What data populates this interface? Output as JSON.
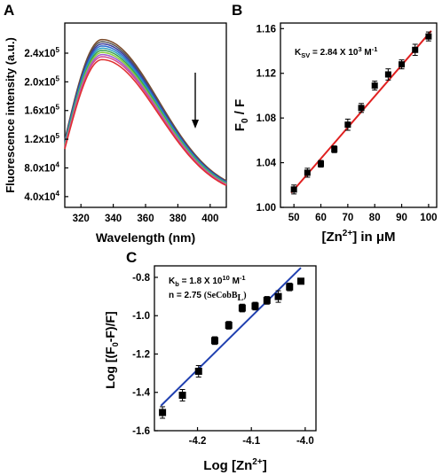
{
  "panels": {
    "a": "A",
    "b": "B",
    "c": "C"
  },
  "chart_data": [
    {
      "type": "line",
      "panel": "A",
      "xlabel": "Wavelength (nm)",
      "ylabel": "Fluorescence intensity (a.u.)",
      "xlim": [
        310,
        410
      ],
      "ylim": [
        25000,
        282000
      ],
      "x_ticks": [
        {
          "v": 320,
          "label": "320"
        },
        {
          "v": 340,
          "label": "340"
        },
        {
          "v": 360,
          "label": "360"
        },
        {
          "v": 380,
          "label": "380"
        },
        {
          "v": 400,
          "label": "400"
        }
      ],
      "y_ticks": [
        {
          "v": 40000,
          "base": "4.0x10",
          "exp": "4"
        },
        {
          "v": 80000,
          "base": "8.0x10",
          "exp": "4"
        },
        {
          "v": 120000,
          "base": "1.2x10",
          "exp": "5"
        },
        {
          "v": 160000,
          "base": "1.6x10",
          "exp": "5"
        },
        {
          "v": 200000,
          "base": "2.0x10",
          "exp": "5"
        },
        {
          "v": 240000,
          "base": "2.4x10",
          "exp": "5"
        }
      ],
      "annotation": "downward arrow: intensity decreases with increasing [Zn2+]",
      "series": [
        {
          "color": "#7a4a2a",
          "peak": 259000
        },
        {
          "color": "#555555",
          "peak": 256000
        },
        {
          "color": "#3a3a9a",
          "peak": 253000
        },
        {
          "color": "#2a6ad0",
          "peak": 250000
        },
        {
          "color": "#2aa0c0",
          "peak": 247000
        },
        {
          "color": "#3aa050",
          "peak": 244000
        },
        {
          "color": "#8acd3a",
          "peak": 241000
        },
        {
          "color": "#a05ad0",
          "peak": 238000
        },
        {
          "color": "#d84a8a",
          "peak": 235000
        },
        {
          "color": "#e03030",
          "peak": 231000
        }
      ],
      "profile": {
        "peak_x": 333,
        "start_x": 310,
        "start_frac": 0.46,
        "end_x": 410,
        "end_frac": 0.165,
        "decay_width": 52
      }
    },
    {
      "type": "scatter",
      "panel": "B",
      "xlabel_main": "[Zn",
      "xlabel_sup": "2+",
      "xlabel_tail": "] in μM",
      "ylabel_main": "F",
      "ylabel_sub": "0",
      "ylabel_tail": " / F",
      "annotation": {
        "k": "K",
        "k_sub": "SV",
        "text": " = 2.84 X 10",
        "exp": "3",
        "unit": " M",
        "unit_exp": "-1"
      },
      "xlim": [
        45,
        103
      ],
      "ylim": [
        1.0,
        1.165
      ],
      "x_ticks": [
        50,
        60,
        70,
        80,
        90,
        100
      ],
      "y_ticks": [
        {
          "v": 1.0,
          "label": "1.00"
        },
        {
          "v": 1.04,
          "label": "1.04"
        },
        {
          "v": 1.08,
          "label": "1.08"
        },
        {
          "v": 1.12,
          "label": "1.12"
        },
        {
          "v": 1.16,
          "label": "1.16"
        }
      ],
      "x": [
        50,
        55,
        60,
        65,
        70,
        75,
        80,
        85,
        90,
        95,
        100
      ],
      "y": [
        1.016,
        1.031,
        1.039,
        1.052,
        1.074,
        1.089,
        1.109,
        1.119,
        1.128,
        1.141,
        1.153
      ],
      "yerr": [
        0.004,
        0.004,
        0.003,
        0.003,
        0.005,
        0.004,
        0.004,
        0.005,
        0.004,
        0.005,
        0.004
      ],
      "fit": {
        "x0": 49,
        "y0": 1.013,
        "x1": 101,
        "y1": 1.158,
        "color": "#e02020"
      }
    },
    {
      "type": "scatter",
      "panel": "C",
      "xlabel_main": "Log [Zn",
      "xlabel_sup": "2+",
      "xlabel_tail": "]",
      "ylabel_main": "Log [(F",
      "ylabel_sub": "0",
      "ylabel_tail": "-F)/F]",
      "annotation": {
        "line1_k": "K",
        "line1_sub": "b",
        "line1_text": " = 1.8 X 10",
        "line1_exp": "10",
        "line1_unit": " M",
        "line1_unit_exp": "-1",
        "line2_text": "n = 2.75 ",
        "line2_serif": "(SeCobB",
        "line2_sub": "L",
        "line2_close": ")"
      },
      "xlim": [
        -4.28,
        -3.98
      ],
      "ylim": [
        -1.6,
        -0.74
      ],
      "x_ticks": [
        {
          "v": -4.2,
          "label": "-4.2"
        },
        {
          "v": -4.1,
          "label": "-4.1"
        },
        {
          "v": -4.0,
          "label": "-4.0"
        }
      ],
      "y_ticks": [
        {
          "v": -1.6,
          "label": "-1.6"
        },
        {
          "v": -1.4,
          "label": "-1.4"
        },
        {
          "v": -1.2,
          "label": "-1.2"
        },
        {
          "v": -1.0,
          "label": "-1.0"
        },
        {
          "v": -0.8,
          "label": "-0.8"
        }
      ],
      "x": [
        -4.265,
        -4.228,
        -4.198,
        -4.168,
        -4.142,
        -4.117,
        -4.093,
        -4.071,
        -4.05,
        -4.029,
        -4.008
      ],
      "y": [
        -1.505,
        -1.415,
        -1.29,
        -1.13,
        -1.05,
        -0.96,
        -0.95,
        -0.92,
        -0.9,
        -0.85,
        -0.82
      ],
      "yerr": [
        0.03,
        0.03,
        0.03,
        0.02,
        0.02,
        0.02,
        0.02,
        0.02,
        0.03,
        0.02,
        0.015
      ],
      "fit": {
        "x0": -4.268,
        "y0": -1.47,
        "x1": -4.008,
        "y1": -0.75,
        "color": "#2040b0"
      }
    }
  ]
}
